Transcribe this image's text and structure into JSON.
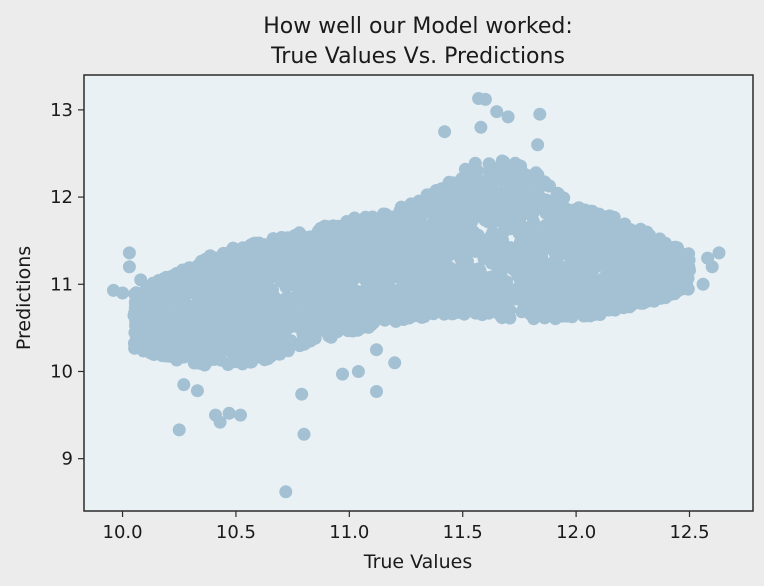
{
  "chart_data": {
    "type": "scatter",
    "title_lines": [
      "How well our Model worked:",
      "True Values Vs. Predictions"
    ],
    "xlabel": "True Values",
    "ylabel": "Predictions",
    "xlim": [
      9.83,
      12.78
    ],
    "ylim": [
      8.4,
      13.4
    ],
    "xticks": [
      10.0,
      10.5,
      11.0,
      11.5,
      12.0,
      12.5
    ],
    "xtick_labels": [
      "10.0",
      "10.5",
      "11.0",
      "11.5",
      "12.0",
      "12.5"
    ],
    "yticks": [
      9,
      10,
      11,
      12,
      13
    ],
    "ytick_labels": [
      "9",
      "10",
      "11",
      "12",
      "13"
    ],
    "grid": false,
    "colors": {
      "marker": "#a3c1d3",
      "plot_background": "#eaf1f5",
      "figure_background": "#ececec",
      "axes": "#2b2b2b"
    },
    "trend": {
      "description_points": [
        [
          10.1,
          10.75
        ],
        [
          11.0,
          11.05
        ],
        [
          11.6,
          11.45
        ],
        [
          12.1,
          11.2
        ],
        [
          12.5,
          11.2
        ]
      ]
    },
    "dense_band": {
      "x": [
        10.05,
        10.2,
        10.4,
        10.6,
        10.8,
        11.0,
        11.2,
        11.4,
        11.55,
        11.7,
        11.85,
        12.0,
        12.2,
        12.35,
        12.5
      ],
      "y_low": [
        10.25,
        10.15,
        10.05,
        10.1,
        10.3,
        10.45,
        10.55,
        10.65,
        10.65,
        10.6,
        10.6,
        10.6,
        10.7,
        10.8,
        10.95
      ],
      "y_high": [
        10.9,
        11.1,
        11.35,
        11.5,
        11.6,
        11.75,
        11.85,
        12.1,
        12.4,
        12.45,
        12.25,
        11.9,
        11.75,
        11.55,
        11.35
      ]
    },
    "outliers": [
      {
        "x": 9.96,
        "y": 10.93
      },
      {
        "x": 10.0,
        "y": 10.9
      },
      {
        "x": 10.03,
        "y": 11.36
      },
      {
        "x": 10.03,
        "y": 11.2
      },
      {
        "x": 10.08,
        "y": 11.05
      },
      {
        "x": 10.25,
        "y": 9.33
      },
      {
        "x": 10.27,
        "y": 9.85
      },
      {
        "x": 10.33,
        "y": 9.78
      },
      {
        "x": 10.41,
        "y": 9.5
      },
      {
        "x": 10.43,
        "y": 9.42
      },
      {
        "x": 10.47,
        "y": 9.52
      },
      {
        "x": 10.52,
        "y": 9.5
      },
      {
        "x": 10.72,
        "y": 8.62
      },
      {
        "x": 10.8,
        "y": 9.28
      },
      {
        "x": 10.79,
        "y": 9.74
      },
      {
        "x": 10.97,
        "y": 9.97
      },
      {
        "x": 11.04,
        "y": 10.0
      },
      {
        "x": 11.12,
        "y": 10.25
      },
      {
        "x": 11.12,
        "y": 9.77
      },
      {
        "x": 11.2,
        "y": 10.1
      },
      {
        "x": 11.42,
        "y": 12.75
      },
      {
        "x": 11.57,
        "y": 13.13
      },
      {
        "x": 11.6,
        "y": 13.12
      },
      {
        "x": 11.65,
        "y": 12.98
      },
      {
        "x": 11.7,
        "y": 12.92
      },
      {
        "x": 11.84,
        "y": 12.95
      },
      {
        "x": 11.58,
        "y": 12.8
      },
      {
        "x": 11.83,
        "y": 12.6
      },
      {
        "x": 12.45,
        "y": 11.35
      },
      {
        "x": 12.5,
        "y": 11.16
      },
      {
        "x": 12.56,
        "y": 11.0
      },
      {
        "x": 12.58,
        "y": 11.3
      },
      {
        "x": 12.6,
        "y": 11.2
      },
      {
        "x": 12.63,
        "y": 11.36
      }
    ]
  }
}
